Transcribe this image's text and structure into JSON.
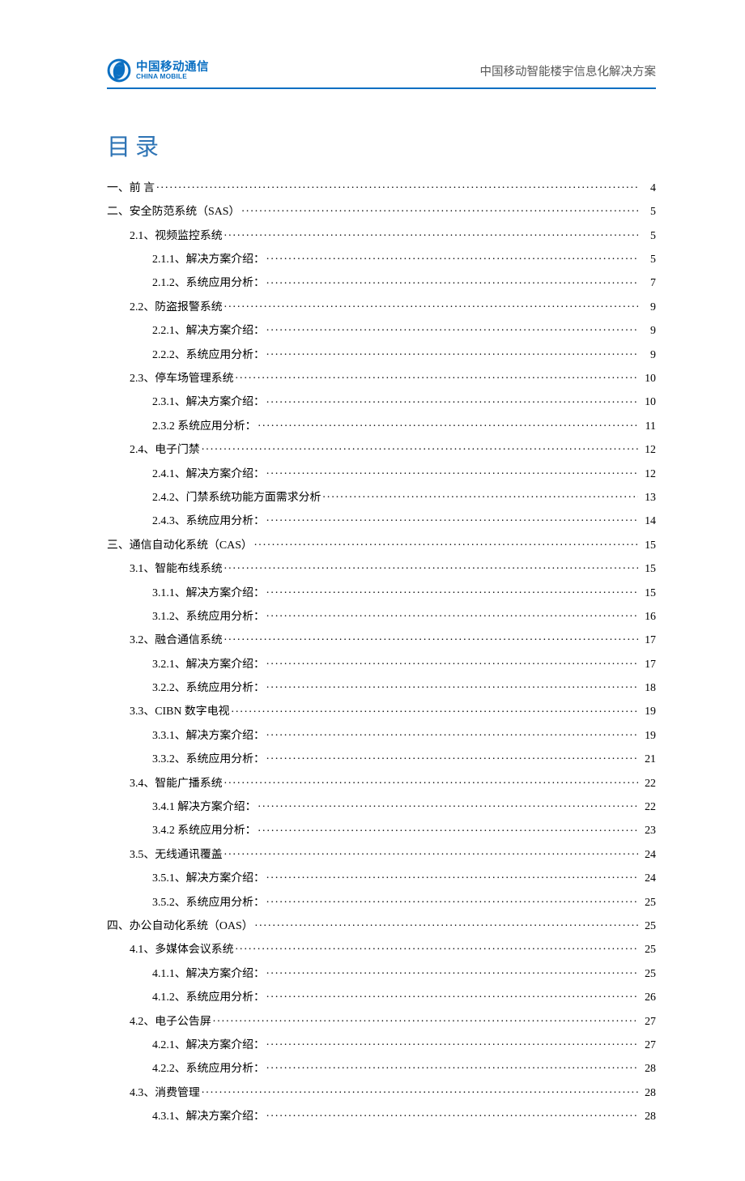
{
  "header": {
    "logo_cn": "中国移动通信",
    "logo_en": "CHINA MOBILE",
    "doc_title": "中国移动智能楼宇信息化解决方案"
  },
  "toc_title": "目录",
  "colors": {
    "brand_blue": "#0a6fc2",
    "heading_blue": "#2e74b5",
    "header_grey": "#595959",
    "text": "#000000",
    "background": "#ffffff"
  },
  "typography": {
    "body_font": "SimSun",
    "heading_font": "SimHei",
    "body_fontsize_pt": 10.5,
    "toc_title_fontsize_pt": 22
  },
  "toc": [
    {
      "level": 0,
      "label_pre": "一、",
      "label_main": "前 言",
      "page": "4",
      "spaced": true
    },
    {
      "level": 0,
      "label": "二、安全防范系统（SAS）",
      "page": "5"
    },
    {
      "level": 1,
      "label": "2.1、视频监控系统",
      "page": "5"
    },
    {
      "level": 2,
      "label": "2.1.1、解决方案介绍：",
      "page": "5"
    },
    {
      "level": 2,
      "label": "2.1.2、系统应用分析：",
      "page": "7"
    },
    {
      "level": 1,
      "label": "2.2、防盗报警系统",
      "page": "9"
    },
    {
      "level": 2,
      "label": "2.2.1、解决方案介绍：",
      "page": "9"
    },
    {
      "level": 2,
      "label": "2.2.2、系统应用分析：",
      "page": "9"
    },
    {
      "level": 1,
      "label": "2.3、停车场管理系统",
      "page": "10"
    },
    {
      "level": 2,
      "label": "2.3.1、解决方案介绍：",
      "page": "10"
    },
    {
      "level": 2,
      "label": "2.3.2 系统应用分析：",
      "page": "11"
    },
    {
      "level": 1,
      "label": "2.4、电子门禁",
      "page": "12"
    },
    {
      "level": 2,
      "label": "2.4.1、解决方案介绍：",
      "page": "12"
    },
    {
      "level": 2,
      "label": "2.4.2、门禁系统功能方面需求分析",
      "page": "13"
    },
    {
      "level": 2,
      "label": "2.4.3、系统应用分析：",
      "page": "14"
    },
    {
      "level": 0,
      "label": "三、通信自动化系统（CAS）",
      "page": "15"
    },
    {
      "level": 1,
      "label": "3.1、智能布线系统",
      "page": "15"
    },
    {
      "level": 2,
      "label": "3.1.1、解决方案介绍：",
      "page": "15"
    },
    {
      "level": 2,
      "label": "3.1.2、系统应用分析：",
      "page": "16"
    },
    {
      "level": 1,
      "label": "3.2、融合通信系统",
      "page": "17"
    },
    {
      "level": 2,
      "label": "3.2.1、解决方案介绍：",
      "page": "17"
    },
    {
      "level": 2,
      "label": "3.2.2、系统应用分析：",
      "page": "18"
    },
    {
      "level": 1,
      "label": "3.3、CIBN 数字电视",
      "page": "19"
    },
    {
      "level": 2,
      "label": "3.3.1、解决方案介绍：",
      "page": "19"
    },
    {
      "level": 2,
      "label": "3.3.2、系统应用分析：",
      "page": "21"
    },
    {
      "level": 1,
      "label": "3.4、智能广播系统",
      "page": "22"
    },
    {
      "level": 2,
      "label": "3.4.1 解决方案介绍：",
      "page": "22"
    },
    {
      "level": 2,
      "label": "3.4.2 系统应用分析：",
      "page": "23"
    },
    {
      "level": 1,
      "label": "3.5、无线通讯覆盖",
      "page": "24"
    },
    {
      "level": 2,
      "label": "3.5.1、解决方案介绍：",
      "page": "24"
    },
    {
      "level": 2,
      "label": "3.5.2、系统应用分析：",
      "page": "25"
    },
    {
      "level": 0,
      "label": "四、办公自动化系统（OAS）",
      "page": "25"
    },
    {
      "level": 1,
      "label": "4.1、多媒体会议系统",
      "page": "25"
    },
    {
      "level": 2,
      "label": "4.1.1、解决方案介绍：",
      "page": "25"
    },
    {
      "level": 2,
      "label": "4.1.2、系统应用分析：",
      "page": "26"
    },
    {
      "level": 1,
      "label": "4.2、电子公告屏",
      "page": "27"
    },
    {
      "level": 2,
      "label": "4.2.1、解决方案介绍：",
      "page": "27"
    },
    {
      "level": 2,
      "label": "4.2.2、系统应用分析：",
      "page": "28"
    },
    {
      "level": 1,
      "label": "4.3、消费管理",
      "page": "28"
    },
    {
      "level": 2,
      "label": "4.3.1、解决方案介绍：",
      "page": "28"
    }
  ]
}
